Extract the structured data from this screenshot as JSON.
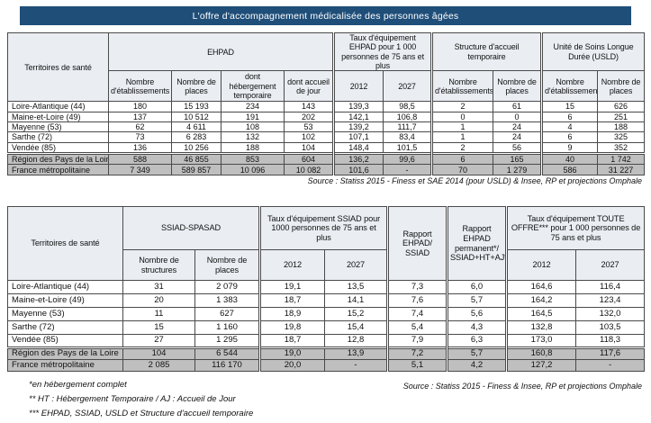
{
  "title": "L'offre d'accompagnement médicalisée des personnes âgées",
  "colors": {
    "title_bg": "#1F4E79",
    "summary_row_bg": "#BFBFBF",
    "header_bg": "#EAEEF3"
  },
  "table1": {
    "territory_header": "Territoires de santé",
    "groups": [
      {
        "label": "EHPAD",
        "cols": [
          "Nombre d'établissements",
          "Nombre de places",
          "dont hébergement temporaire",
          "dont accueil de jour"
        ]
      },
      {
        "label": "Taux d'équipement EHPAD pour 1 000 personnes de 75 ans et plus",
        "cols": [
          "2012",
          "2027"
        ]
      },
      {
        "label": "Structure d'accueil temporaire",
        "cols": [
          "Nombre d'établissements",
          "Nombre de places"
        ]
      },
      {
        "label": "Unité de Soins Longue Durée (USLD)",
        "cols": [
          "Nombre d'établissements",
          "Nombre de places"
        ]
      }
    ],
    "rows": [
      {
        "territory": "Loire-Atlantique (44)",
        "values": [
          "180",
          "15 193",
          "234",
          "143",
          "139,3",
          "98,5",
          "2",
          "61",
          "15",
          "626"
        ]
      },
      {
        "territory": "Maine-et-Loire (49)",
        "values": [
          "137",
          "10 512",
          "191",
          "202",
          "142,1",
          "106,8",
          "0",
          "0",
          "6",
          "251"
        ]
      },
      {
        "territory": "Mayenne (53)",
        "values": [
          "62",
          "4 611",
          "108",
          "53",
          "139,2",
          "111,7",
          "1",
          "24",
          "4",
          "188"
        ]
      },
      {
        "territory": "Sarthe (72)",
        "values": [
          "73",
          "6 283",
          "132",
          "102",
          "107,1",
          "83,4",
          "1",
          "24",
          "6",
          "325"
        ]
      },
      {
        "territory": "Vendée (85)",
        "values": [
          "136",
          "10 256",
          "188",
          "104",
          "148,4",
          "101,5",
          "2",
          "56",
          "9",
          "352"
        ]
      }
    ],
    "summary_rows": [
      {
        "territory": "Région des Pays de la Loire",
        "values": [
          "588",
          "46 855",
          "853",
          "604",
          "136,2",
          "99,6",
          "6",
          "165",
          "40",
          "1 742"
        ]
      },
      {
        "territory": "France métropolitaine",
        "values": [
          "7 349",
          "589 857",
          "10 096",
          "10 082",
          "101,6",
          "-",
          "70",
          "1 279",
          "586",
          "31 227"
        ]
      }
    ],
    "source": "Source : Statiss 2015 - Finess et SAE 2014 (pour USLD) & Insee, RP et projections Omphale"
  },
  "table2": {
    "territory_header": "Territoires de santé",
    "groups": [
      {
        "label": "SSIAD-SPASAD",
        "cols": [
          "Nombre de structures",
          "Nombre de places"
        ]
      },
      {
        "label": "Taux d'équipement SSIAD pour 1000 personnes de 75 ans et plus",
        "cols": [
          "2012",
          "2027"
        ]
      },
      {
        "label": "Rapport EHPAD/ SSIAD",
        "cols": []
      },
      {
        "label": "Rapport EHPAD permanent*/ SSIAD+HT+AJ**",
        "cols": []
      },
      {
        "label": "Taux d'équipement TOUTE OFFRE*** pour 1 000 personnes de 75 ans et plus",
        "cols": [
          "2012",
          "2027"
        ]
      }
    ],
    "rows": [
      {
        "territory": "Loire-Atlantique (44)",
        "values": [
          "31",
          "2 079",
          "19,1",
          "13,5",
          "7,3",
          "6,0",
          "164,6",
          "116,4"
        ]
      },
      {
        "territory": "Maine-et-Loire (49)",
        "values": [
          "20",
          "1 383",
          "18,7",
          "14,1",
          "7,6",
          "5,7",
          "164,2",
          "123,4"
        ]
      },
      {
        "territory": "Mayenne (53)",
        "values": [
          "11",
          "627",
          "18,9",
          "15,2",
          "7,4",
          "5,6",
          "164,5",
          "132,0"
        ]
      },
      {
        "territory": "Sarthe (72)",
        "values": [
          "15",
          "1 160",
          "19,8",
          "15,4",
          "5,4",
          "4,3",
          "132,8",
          "103,5"
        ]
      },
      {
        "territory": "Vendée (85)",
        "values": [
          "27",
          "1 295",
          "18,7",
          "12,8",
          "7,9",
          "6,3",
          "173,0",
          "118,3"
        ]
      }
    ],
    "summary_rows": [
      {
        "territory": "Région des Pays de la Loire",
        "values": [
          "104",
          "6 544",
          "19,0",
          "13,9",
          "7,2",
          "5,7",
          "160,8",
          "117,6"
        ]
      },
      {
        "territory": "France métropolitaine",
        "values": [
          "2 085",
          "116 170",
          "20,0",
          "-",
          "5,1",
          "4,2",
          "127,2",
          "-"
        ]
      }
    ],
    "source": "Source : Statiss 2015 - Finess & Insee, RP et projections Omphale"
  },
  "footnotes": [
    "*en hébergement complet",
    "** HT : Hébergement Temporaire / AJ : Accueil de Jour",
    "*** EHPAD, SSIAD, USLD et Structure d'accueil temporaire"
  ]
}
